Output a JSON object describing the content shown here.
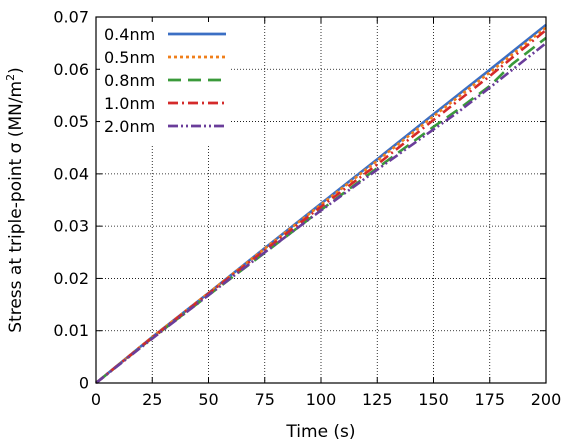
{
  "chart_data": {
    "type": "line",
    "title": "",
    "xlabel": "Time (s)",
    "ylabel_main": "Stress at triple-point  σ (MN/m",
    "ylabel_sup": "2",
    "ylabel_close": ")",
    "xlim": [
      0,
      200
    ],
    "ylim": [
      0,
      0.07
    ],
    "x_ticks": [
      0,
      25,
      50,
      75,
      100,
      125,
      150,
      175,
      200
    ],
    "x_tick_labels": [
      "0",
      "25",
      "50",
      "75",
      "100",
      "125",
      "150",
      "175",
      "200"
    ],
    "y_ticks": [
      0,
      0.01,
      0.02,
      0.03,
      0.04,
      0.05,
      0.06,
      0.07
    ],
    "y_tick_labels": [
      "0",
      "0.01",
      "0.02",
      "0.03",
      "0.04",
      "0.05",
      "0.06",
      "0.07"
    ],
    "grid": true,
    "legend_position": "top-left",
    "series": [
      {
        "name": "0.4nm",
        "color": "#3b6fc4",
        "dash": "solid",
        "x": [
          0,
          25,
          50,
          75,
          100,
          125,
          150,
          175,
          200
        ],
        "y": [
          0,
          0.0088,
          0.0172,
          0.0258,
          0.0343,
          0.0428,
          0.0514,
          0.0599,
          0.0685
        ]
      },
      {
        "name": "0.5nm",
        "color": "#f07f1a",
        "dash": "dotted",
        "x": [
          0,
          25,
          50,
          75,
          100,
          125,
          150,
          175,
          200
        ],
        "y": [
          0,
          0.0088,
          0.0172,
          0.0257,
          0.0341,
          0.0425,
          0.051,
          0.0594,
          0.068
        ]
      },
      {
        "name": "0.8nm",
        "color": "#3a9a3a",
        "dash": "long-dash",
        "x": [
          0,
          25,
          50,
          75,
          100,
          125,
          150,
          160,
          175,
          185,
          200
        ],
        "y": [
          0,
          0.0086,
          0.0168,
          0.0249,
          0.0331,
          0.0411,
          0.049,
          0.052,
          0.0568,
          0.061,
          0.066
        ]
      },
      {
        "name": "1.0nm",
        "color": "#d42a2a",
        "dash": "dash-dot",
        "x": [
          0,
          25,
          50,
          75,
          100,
          125,
          150,
          175,
          200
        ],
        "y": [
          0,
          0.0087,
          0.0171,
          0.0254,
          0.0337,
          0.0418,
          0.0503,
          0.0587,
          0.0675
        ]
      },
      {
        "name": "2.0nm",
        "color": "#6a3d9a",
        "dash": "dash-dot-dot",
        "x": [
          0,
          25,
          50,
          75,
          100,
          125,
          150,
          160,
          175,
          200
        ],
        "y": [
          0,
          0.0085,
          0.0168,
          0.025,
          0.033,
          0.0408,
          0.0485,
          0.0515,
          0.0565,
          0.065
        ]
      }
    ]
  }
}
